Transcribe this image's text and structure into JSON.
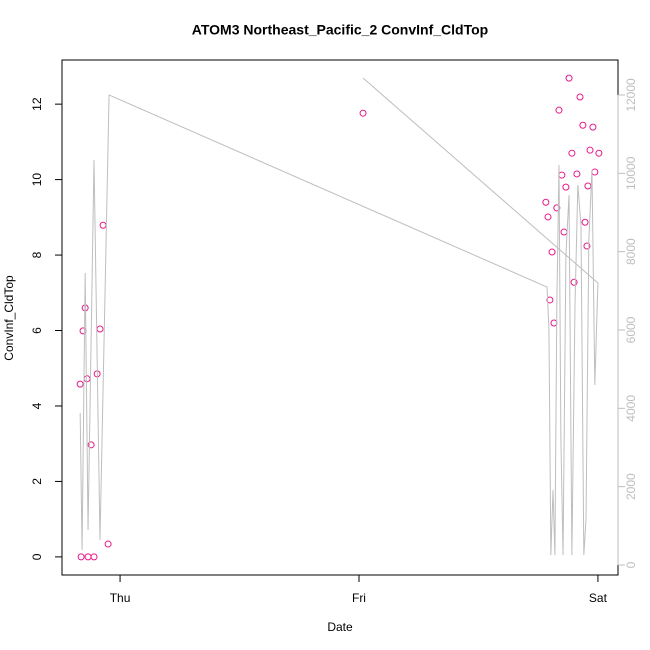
{
  "chart_data": {
    "type": "scatter",
    "title": "ATOM3 Northeast_Pacific_2 ConvInf_CldTop",
    "xlabel": "Date",
    "ylabel": "ConvInf_CldTop",
    "xlim": [
      0.757,
      3.084
    ],
    "xticks": [
      {
        "value": 1,
        "label": "Thu"
      },
      {
        "value": 2,
        "label": "Fri"
      },
      {
        "value": 3,
        "label": "Sat"
      }
    ],
    "ylim": [
      -0.48,
      13.17
    ],
    "yticks": [
      0,
      2,
      4,
      6,
      8,
      10,
      12
    ],
    "y2lim": [
      -255,
      12893
    ],
    "y2ticks": [
      0,
      2000,
      4000,
      6000,
      8000,
      10000,
      12000
    ],
    "series": [
      {
        "type": "scatter",
        "color": "#e6198a",
        "x": [
          0.833,
          0.837,
          0.845,
          0.854,
          0.862,
          0.866,
          0.879,
          0.891,
          0.904,
          0.916,
          0.929,
          0.95,
          2.017,
          2.782,
          2.791,
          2.799,
          2.808,
          2.816,
          2.828,
          2.837,
          2.849,
          2.858,
          2.866,
          2.879,
          2.891,
          2.9,
          2.912,
          2.925,
          2.937,
          2.946,
          2.954,
          2.958,
          2.967,
          2.979,
          2.987,
          3.004
        ],
        "values": [
          4.58,
          0,
          5.99,
          6.6,
          4.72,
          0,
          2.97,
          0,
          4.85,
          6.04,
          8.79,
          0.34,
          11.76,
          9.4,
          9.01,
          6.81,
          8.08,
          6.2,
          9.25,
          11.84,
          10.12,
          8.61,
          9.8,
          12.69,
          10.7,
          7.28,
          10.15,
          12.19,
          11.44,
          8.87,
          8.24,
          9.83,
          10.78,
          11.39,
          10.2,
          10.7
        ]
      },
      {
        "type": "line",
        "color": "#bebebe",
        "axis": "y2",
        "x": [
          0.833,
          0.841,
          0.854,
          0.866,
          0.891,
          0.916,
          0.954,
          2.787,
          2.795,
          2.803,
          2.812,
          2.82,
          2.828,
          2.837,
          2.845,
          2.854,
          2.866,
          2.879,
          2.891,
          2.904,
          2.916,
          2.929,
          2.941,
          2.95,
          2.962,
          2.975,
          2.987,
          3.0,
          2.017
        ],
        "values": [
          3880,
          383,
          7455,
          894,
          10340,
          638,
          12000,
          7097,
          6000,
          255,
          1915,
          255,
          6638,
          10212,
          3191,
          255,
          7914,
          9446,
          255,
          6638,
          9702,
          8680,
          255,
          1149,
          8297,
          10085,
          4595,
          7199,
          12433
        ]
      }
    ]
  }
}
